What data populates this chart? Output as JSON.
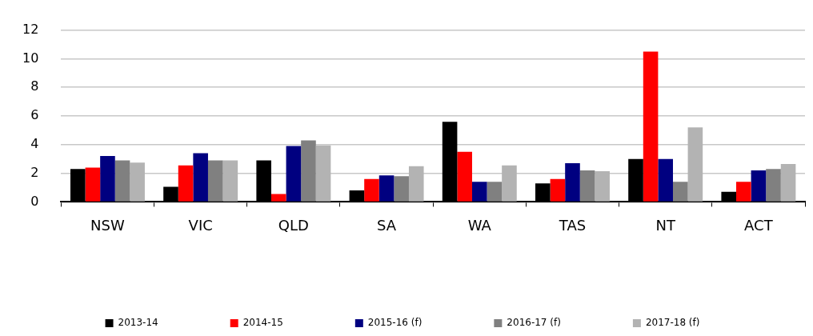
{
  "chart_data": {
    "type": "bar",
    "categories": [
      "NSW",
      "VIC",
      "QLD",
      "SA",
      "WA",
      "TAS",
      "NT",
      "ACT"
    ],
    "series": [
      {
        "name": "2013-14",
        "color": "#000000",
        "values": [
          2.3,
          1.05,
          2.9,
          0.8,
          5.6,
          1.3,
          3.0,
          0.7
        ]
      },
      {
        "name": "2014-15",
        "color": "#ff0000",
        "values": [
          2.4,
          2.55,
          0.55,
          1.6,
          3.5,
          1.6,
          10.5,
          1.4
        ]
      },
      {
        "name": "2015-16 (f)",
        "color": "#000080",
        "values": [
          3.2,
          3.4,
          3.9,
          1.85,
          1.4,
          2.7,
          3.0,
          2.2
        ]
      },
      {
        "name": "2016-17 (f)",
        "color": "#808080",
        "values": [
          2.9,
          2.9,
          4.3,
          1.8,
          1.4,
          2.2,
          1.4,
          2.3
        ]
      },
      {
        "name": "2017-18 (f)",
        "color": "#b3b3b3",
        "values": [
          2.75,
          2.9,
          3.95,
          2.5,
          2.55,
          2.15,
          5.2,
          2.65
        ]
      }
    ],
    "ylim": [
      0,
      12
    ],
    "yticks": [
      0,
      2,
      4,
      6,
      8,
      10,
      12
    ],
    "grid": "y",
    "legend": "bottom"
  }
}
